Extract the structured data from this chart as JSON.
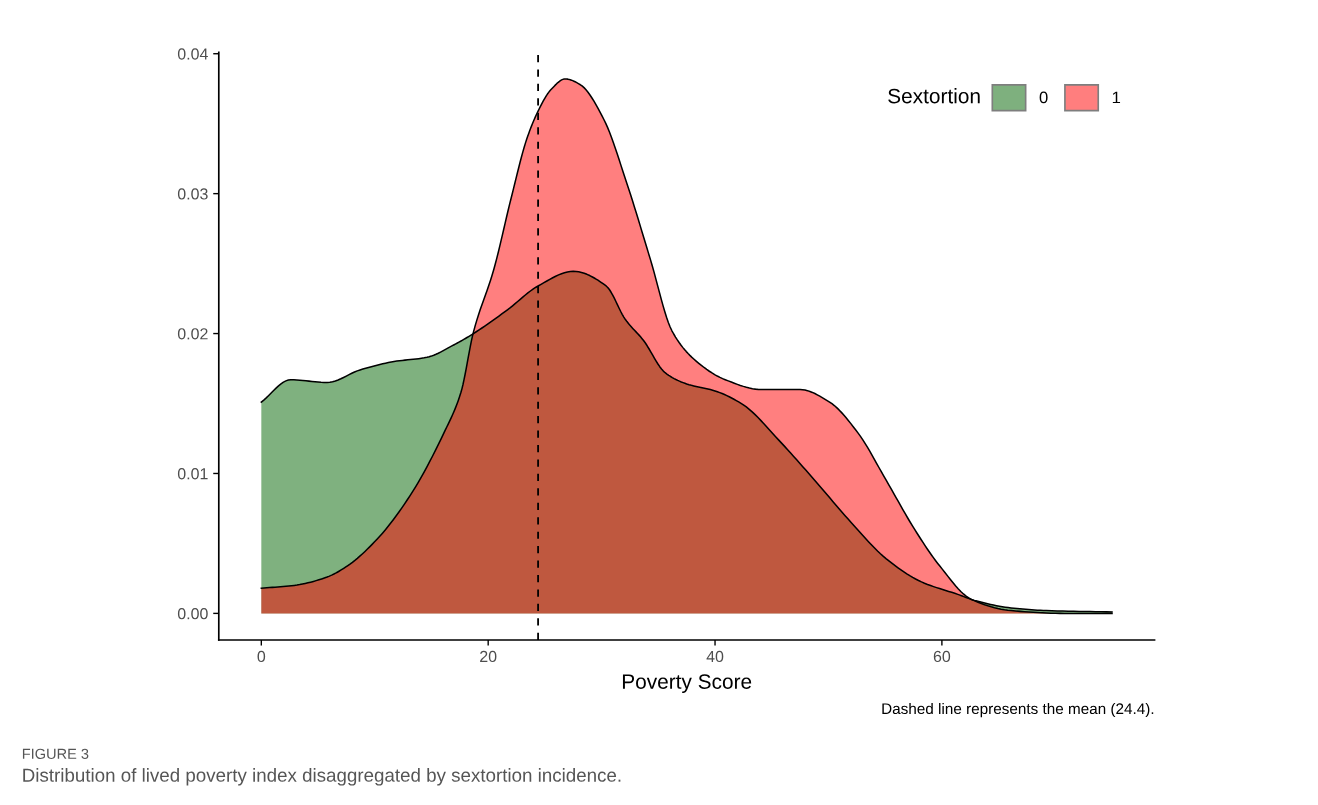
{
  "chart_data": {
    "type": "area",
    "xlabel": "Poverty Score",
    "legend_title": "Sextortion",
    "xlim": [
      -3.75,
      78.75
    ],
    "ylim": [
      -0.0019,
      0.0401
    ],
    "xticks": [
      0,
      20,
      40,
      60
    ],
    "yticks": [
      {
        "value": 0,
        "label": "0.00"
      },
      {
        "value": 0.01,
        "label": "0.01"
      },
      {
        "value": 0.02,
        "label": "0.02"
      },
      {
        "value": 0.03,
        "label": "0.03"
      },
      {
        "value": 0.04,
        "label": "0.04"
      }
    ],
    "grid": false,
    "legend": "top right",
    "series": [
      {
        "name": "0",
        "color": "#006400",
        "x": [
          0,
          2.6,
          5.8,
          8.7,
          11.7,
          14.6,
          17.0,
          18.7,
          21.7,
          24.4,
          27.5,
          30.4,
          32.1,
          33.7,
          35.6,
          37.5,
          40,
          42.5,
          45.6,
          48.8,
          52,
          55.1,
          58.2,
          61.4,
          63,
          66.1,
          69.2,
          75
        ],
        "values": [
          0.0151,
          0.0167,
          0.0165,
          0.0174,
          0.018,
          0.0183,
          0.0192,
          0.02,
          0.0217,
          0.0234,
          0.02445,
          0.0234,
          0.021,
          0.0195,
          0.0172,
          0.0164,
          0.0159,
          0.0149,
          0.0124,
          0.0095,
          0.0065,
          0.0039,
          0.00225,
          0.00136,
          0.0009,
          0.00039,
          0.0002,
          0.0001
        ]
      },
      {
        "name": "1",
        "color": "#ff0000",
        "x": [
          0,
          2.9,
          5.8,
          7.6,
          10.2,
          13.1,
          16.1,
          17.6,
          18.7,
          20.5,
          22.0,
          23.4,
          24.4,
          25.5,
          26.8,
          28.1,
          30.2,
          32.2,
          34.3,
          36.2,
          38.1,
          40.9,
          44.1,
          47.5,
          50.1,
          52.6,
          55.1,
          57.6,
          59.8,
          62.6,
          66.1,
          70.8,
          75
        ],
        "values": [
          0.0018,
          0.002,
          0.0026,
          0.0034,
          0.0053,
          0.0084,
          0.0129,
          0.0158,
          0.0201,
          0.0246,
          0.0296,
          0.0339,
          0.0359,
          0.0374,
          0.0382,
          0.0378,
          0.0353,
          0.0308,
          0.0253,
          0.0202,
          0.0182,
          0.0167,
          0.016,
          0.016,
          0.0151,
          0.0129,
          0.0095,
          0.006,
          0.0034,
          0.001,
          0.0002,
          0.0,
          0.0
        ]
      }
    ],
    "ref_lines": [
      {
        "axis": "x",
        "value": 24.4,
        "line_style": "dashed",
        "color": "#000000"
      }
    ],
    "annotations": [
      "Dashed line represents the mean (24.4).",
      "FIGURE 3",
      "Distribution of lived poverty index disaggregated by sextortion incidence."
    ]
  }
}
